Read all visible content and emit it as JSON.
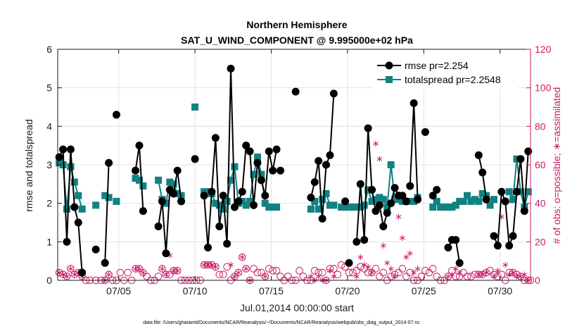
{
  "colors": {
    "left_axis": "#1a1a1a",
    "right_axis": "#cc1a66",
    "rmse": "#000000",
    "totalspread": "#118181",
    "obs": "#cc1a66"
  },
  "chart_data": {
    "type": "line",
    "title": "Northern Hemisphere",
    "subtitle": "SAT_U_WIND_COMPONENT @ 9.995000e+02 hPa",
    "xlabel": "Jul.01,2014 00:00:00 start",
    "ylabel_left": "rmse and totalspread",
    "ylabel_right": "# of obs: o=possible; ∗=assimilated",
    "footnote": "data file: /Users/gharamti/Documents/NCAR/Reanalysis/~/Documents/NCAR/Reanalysis/webpub/obs_diag_output_2014-07.nc",
    "x_unit": "day of July 2014 (fractional)",
    "xlim": [
      1.0,
      32.0
    ],
    "ylim_left": [
      0,
      6
    ],
    "ylim_right": [
      0,
      120
    ],
    "x_ticks": [
      {
        "x": 5,
        "label": "07/05"
      },
      {
        "x": 10,
        "label": "07/10"
      },
      {
        "x": 15,
        "label": "07/15"
      },
      {
        "x": 20,
        "label": "07/20"
      },
      {
        "x": 25,
        "label": "07/25"
      },
      {
        "x": 30,
        "label": "07/30"
      }
    ],
    "y_ticks_left": [
      0,
      1,
      2,
      3,
      4,
      5,
      6
    ],
    "y_ticks_right": [
      0,
      20,
      40,
      60,
      80,
      100,
      120
    ],
    "grid": true,
    "legend_position": "top-right",
    "series": [
      {
        "name": "rmse pr=2.254",
        "axis": "left",
        "marker": "circle",
        "segments": [
          {
            "x": [
              1.1,
              1.35,
              1.6,
              1.85,
              2.1,
              2.35,
              2.6
            ],
            "y": [
              3.2,
              3.4,
              1.0,
              3.4,
              1.9,
              1.5,
              0.2
            ]
          },
          {
            "x": [
              3.5
            ],
            "y": [
              0.8
            ]
          },
          {
            "x": [
              4.1,
              4.35
            ],
            "y": [
              0.45,
              3.05
            ]
          },
          {
            "x": [
              4.85
            ],
            "y": [
              4.3
            ]
          },
          {
            "x": [
              6.1,
              6.35,
              6.6
            ],
            "y": [
              2.85,
              3.5,
              1.8
            ]
          },
          {
            "x": [
              7.6,
              7.85,
              8.1,
              8.35,
              8.6,
              8.85,
              9.1
            ],
            "y": [
              1.4,
              2.05,
              0.7,
              2.35,
              2.25,
              2.85,
              2.05
            ]
          },
          {
            "x": [
              10.0
            ],
            "y": [
              3.15
            ]
          },
          {
            "x": [
              10.6,
              10.85,
              11.1,
              11.35,
              11.6,
              11.85,
              12.1,
              12.35,
              12.6,
              12.85,
              13.1,
              13.35,
              13.6,
              13.85,
              14.1,
              14.35,
              14.6,
              14.85,
              15.1,
              15.35
            ],
            "y": [
              2.2,
              0.85,
              2.3,
              3.7,
              1.4,
              2.2,
              0.95,
              5.5,
              1.9,
              2.05,
              2.3,
              3.5,
              3.35,
              1.95,
              3.05,
              2.6,
              2.2,
              3.35,
              2.85,
              3.4
            ]
          },
          {
            "x": [
              15.6
            ],
            "y": [
              2.85
            ]
          },
          {
            "x": [
              16.6
            ],
            "y": [
              4.9
            ]
          },
          {
            "x": [
              17.6,
              17.85,
              18.1,
              18.35,
              18.6,
              18.85,
              19.1
            ],
            "y": [
              2.15,
              2.55,
              3.1,
              1.6,
              3.0,
              3.25,
              4.85
            ]
          },
          {
            "x": [
              19.85
            ],
            "y": [
              2.05
            ]
          },
          {
            "x": [
              20.1
            ],
            "y": [
              0.45
            ]
          },
          {
            "x": [
              20.6,
              20.85,
              21.1,
              21.35,
              21.6,
              21.85,
              22.1,
              22.35,
              22.6,
              22.85,
              23.1,
              23.35,
              23.6,
              23.85
            ],
            "y": [
              1.0,
              2.5,
              1.05,
              3.95,
              2.35,
              1.8,
              1.95,
              1.4,
              1.75,
              2.0,
              2.4,
              2.2,
              2.2,
              2.05
            ]
          },
          {
            "x": [
              24.1,
              24.35,
              24.6
            ],
            "y": [
              2.45,
              4.6,
              2.1
            ]
          },
          {
            "x": [
              25.1
            ],
            "y": [
              3.85
            ]
          },
          {
            "x": [
              25.6,
              25.85
            ],
            "y": [
              2.2,
              2.35
            ]
          },
          {
            "x": [
              26.6,
              26.85,
              27.1,
              27.35
            ],
            "y": [
              0.85,
              1.05,
              1.05,
              0.45
            ]
          },
          {
            "x": [
              28.6,
              28.85,
              29.1
            ],
            "y": [
              3.25,
              2.8,
              2.1
            ]
          },
          {
            "x": [
              29.6,
              29.85,
              30.1,
              30.35,
              30.6,
              30.85,
              31.1,
              31.35,
              31.6,
              31.85
            ],
            "y": [
              1.15,
              0.9,
              2.3,
              2.05,
              0.9,
              1.15,
              2.3,
              3.15,
              1.8,
              3.35
            ]
          }
        ]
      },
      {
        "name": "totalspread pr=2.2548",
        "axis": "left",
        "marker": "square",
        "segments": [
          {
            "x": [
              1.1,
              1.35,
              1.6,
              1.85,
              2.1,
              2.35,
              2.6
            ],
            "y": [
              3.05,
              3.0,
              1.85,
              2.95,
              2.55,
              2.2,
              1.85
            ]
          },
          {
            "x": [
              3.5
            ],
            "y": [
              1.95
            ]
          },
          {
            "x": [
              4.1,
              4.35
            ],
            "y": [
              2.2,
              2.15
            ]
          },
          {
            "x": [
              4.85
            ],
            "y": [
              2.05
            ]
          },
          {
            "x": [
              6.1,
              6.35,
              6.6
            ],
            "y": [
              2.65,
              2.6,
              2.45
            ]
          },
          {
            "x": [
              7.6,
              7.85,
              8.1,
              8.35,
              8.6,
              8.85,
              9.1
            ],
            "y": [
              2.6,
              2.1,
              2.0,
              2.55,
              2.5,
              2.25,
              2.2
            ]
          },
          {
            "x": [
              10.0
            ],
            "y": [
              4.5
            ]
          },
          {
            "x": [
              10.6,
              10.85,
              11.1,
              11.35,
              11.6,
              11.85,
              12.1,
              12.35,
              12.6,
              12.85,
              13.1,
              13.35,
              13.6,
              13.85,
              14.1,
              14.35,
              14.6,
              14.85,
              15.1,
              15.35
            ],
            "y": [
              2.3,
              2.3,
              2.25,
              2.0,
              1.95,
              1.85,
              2.05,
              2.6,
              2.95,
              2.0,
              2.05,
              1.95,
              2.05,
              2.75,
              3.2,
              2.75,
              2.0,
              1.9,
              1.9,
              1.9
            ]
          },
          {
            "x": [
              17.6,
              17.85,
              18.1,
              18.35,
              18.6,
              18.85,
              19.1
            ],
            "y": [
              1.85,
              2.05,
              1.85,
              2.1,
              2.25,
              1.95,
              1.95
            ]
          },
          {
            "x": [
              19.6,
              19.85,
              20.1,
              20.35,
              20.6,
              20.85,
              21.1,
              21.35,
              21.6,
              21.85,
              22.1,
              22.35,
              22.6,
              22.85,
              23.1,
              23.35,
              23.6,
              23.85,
              24.1,
              24.35,
              24.6
            ],
            "y": [
              1.9,
              1.9,
              1.9,
              1.9,
              1.9,
              1.9,
              1.95,
              2.35,
              2.05,
              2.1,
              2.15,
              2.1,
              1.9,
              3.0,
              2.1,
              2.1,
              2.05,
              2.05,
              2.05,
              2.05,
              2.15
            ]
          },
          {
            "x": [
              25.6,
              25.85,
              26.1,
              26.35,
              26.6,
              26.85,
              27.1,
              27.35,
              27.6,
              27.85,
              28.1,
              28.35,
              28.6,
              28.85,
              29.1,
              29.35,
              29.6
            ],
            "y": [
              1.9,
              2.05,
              1.9,
              1.9,
              1.9,
              1.9,
              1.95,
              2.05,
              2.05,
              2.2,
              2.05,
              2.1,
              2.05,
              2.25,
              2.2,
              1.95,
              2.1
            ]
          },
          {
            "x": [
              30.6,
              30.85,
              31.1,
              31.35,
              31.6,
              31.85
            ],
            "y": [
              2.3,
              2.1,
              3.15,
              2.3,
              1.9,
              2.3
            ]
          }
        ]
      },
      {
        "name": "obs possible",
        "axis": "right",
        "marker": "circle-open",
        "x": [
          1.1,
          1.35,
          1.6,
          1.85,
          2.1,
          2.35,
          2.6,
          2.85,
          3.1,
          3.5,
          3.85,
          4.1,
          4.35,
          4.6,
          4.85,
          5.1,
          5.35,
          5.6,
          5.85,
          6.1,
          6.35,
          6.6,
          6.85,
          7.1,
          7.35,
          7.6,
          7.85,
          8.1,
          8.35,
          8.6,
          8.85,
          9.1,
          9.35,
          9.6,
          9.85,
          10.1,
          10.35,
          10.6,
          10.85,
          11.1,
          11.35,
          11.6,
          11.85,
          12.1,
          12.35,
          12.6,
          12.85,
          13.1,
          13.35,
          13.6,
          13.85,
          14.1,
          14.35,
          14.6,
          14.85,
          15.1,
          15.35,
          15.6,
          15.85,
          16.1,
          16.35,
          16.6,
          16.85,
          17.1,
          17.35,
          17.6,
          17.85,
          18.1,
          18.35,
          18.6,
          18.85,
          19.1,
          19.35,
          19.6,
          19.85,
          20.1,
          20.35,
          20.6,
          20.85,
          21.1,
          21.35,
          21.6,
          21.85,
          22.1,
          22.35,
          22.6,
          22.85,
          23.1,
          23.35,
          23.6,
          23.85,
          24.1,
          24.35,
          24.6,
          24.85,
          25.1,
          25.35,
          25.6,
          25.85,
          26.1,
          26.35,
          26.6,
          26.85,
          27.1,
          27.35,
          27.6,
          27.85,
          28.1,
          28.35,
          28.6,
          28.85,
          29.1,
          29.35,
          29.6,
          29.85,
          30.1,
          30.35,
          30.6,
          30.85,
          31.1,
          31.35,
          31.6,
          31.85,
          32.0
        ],
        "y": [
          4,
          3,
          2,
          6,
          3,
          4,
          2,
          0,
          0,
          0,
          0,
          0,
          3,
          0,
          0,
          4,
          0,
          4,
          0,
          6,
          6,
          4,
          2,
          0,
          0,
          2,
          6,
          3,
          3,
          5,
          5,
          0,
          0,
          0,
          0,
          0,
          0,
          8,
          8,
          8,
          7,
          3,
          3,
          7,
          0,
          2,
          4,
          12,
          6,
          0,
          6,
          4,
          4,
          2,
          6,
          5,
          5,
          2,
          0,
          2,
          0,
          0,
          5,
          2,
          0,
          0,
          5,
          4,
          4,
          0,
          6,
          6,
          3,
          8,
          7,
          4,
          4,
          5,
          7,
          6,
          4,
          4,
          6,
          2,
          4,
          0,
          2,
          3,
          4,
          6,
          2,
          4,
          0,
          0,
          2,
          5,
          4,
          6,
          2,
          0,
          0,
          2,
          5,
          2,
          2,
          4,
          2,
          2,
          3,
          3,
          3,
          4,
          5,
          3,
          2,
          3,
          0,
          4,
          4,
          3,
          2,
          0,
          0,
          0
        ]
      },
      {
        "name": "obs assimilated",
        "axis": "right",
        "marker": "asterisk",
        "x": [
          1.1,
          1.35,
          1.6,
          1.85,
          2.1,
          2.35,
          2.6,
          4.1,
          4.35,
          6.1,
          6.35,
          6.6,
          7.85,
          8.1,
          8.35,
          8.6,
          8.85,
          10.6,
          10.85,
          11.1,
          11.35,
          12.35,
          12.6,
          12.85,
          13.1,
          13.35,
          13.6,
          14.6,
          17.6,
          17.85,
          18.1,
          18.35,
          18.6,
          18.85,
          19.1,
          20.6,
          20.85,
          21.1,
          21.35,
          21.6,
          21.85,
          22.1,
          22.35,
          22.6,
          22.85,
          23.1,
          23.35,
          23.6,
          23.85,
          24.1,
          24.35,
          24.6,
          26.6,
          26.85,
          27.1,
          27.35,
          28.6,
          28.85,
          29.1,
          29.6,
          29.85,
          30.1,
          30.35,
          30.6,
          30.85,
          31.1,
          31.35,
          31.6,
          31.85
        ],
        "y": [
          4,
          3,
          2,
          6,
          3,
          4,
          2,
          0,
          3,
          6,
          6,
          4,
          6,
          3,
          13,
          5,
          5,
          8,
          8,
          8,
          7,
          8,
          2,
          4,
          12,
          6,
          0,
          2,
          2,
          0,
          2,
          0,
          0,
          5,
          2,
          2,
          12,
          8,
          7,
          4,
          71,
          63,
          18,
          9,
          6,
          2,
          33,
          22,
          12,
          14,
          4,
          6,
          2,
          3,
          6,
          4,
          3,
          3,
          4,
          2,
          5,
          33,
          8,
          3,
          4,
          2,
          2,
          3,
          0
        ]
      }
    ]
  }
}
